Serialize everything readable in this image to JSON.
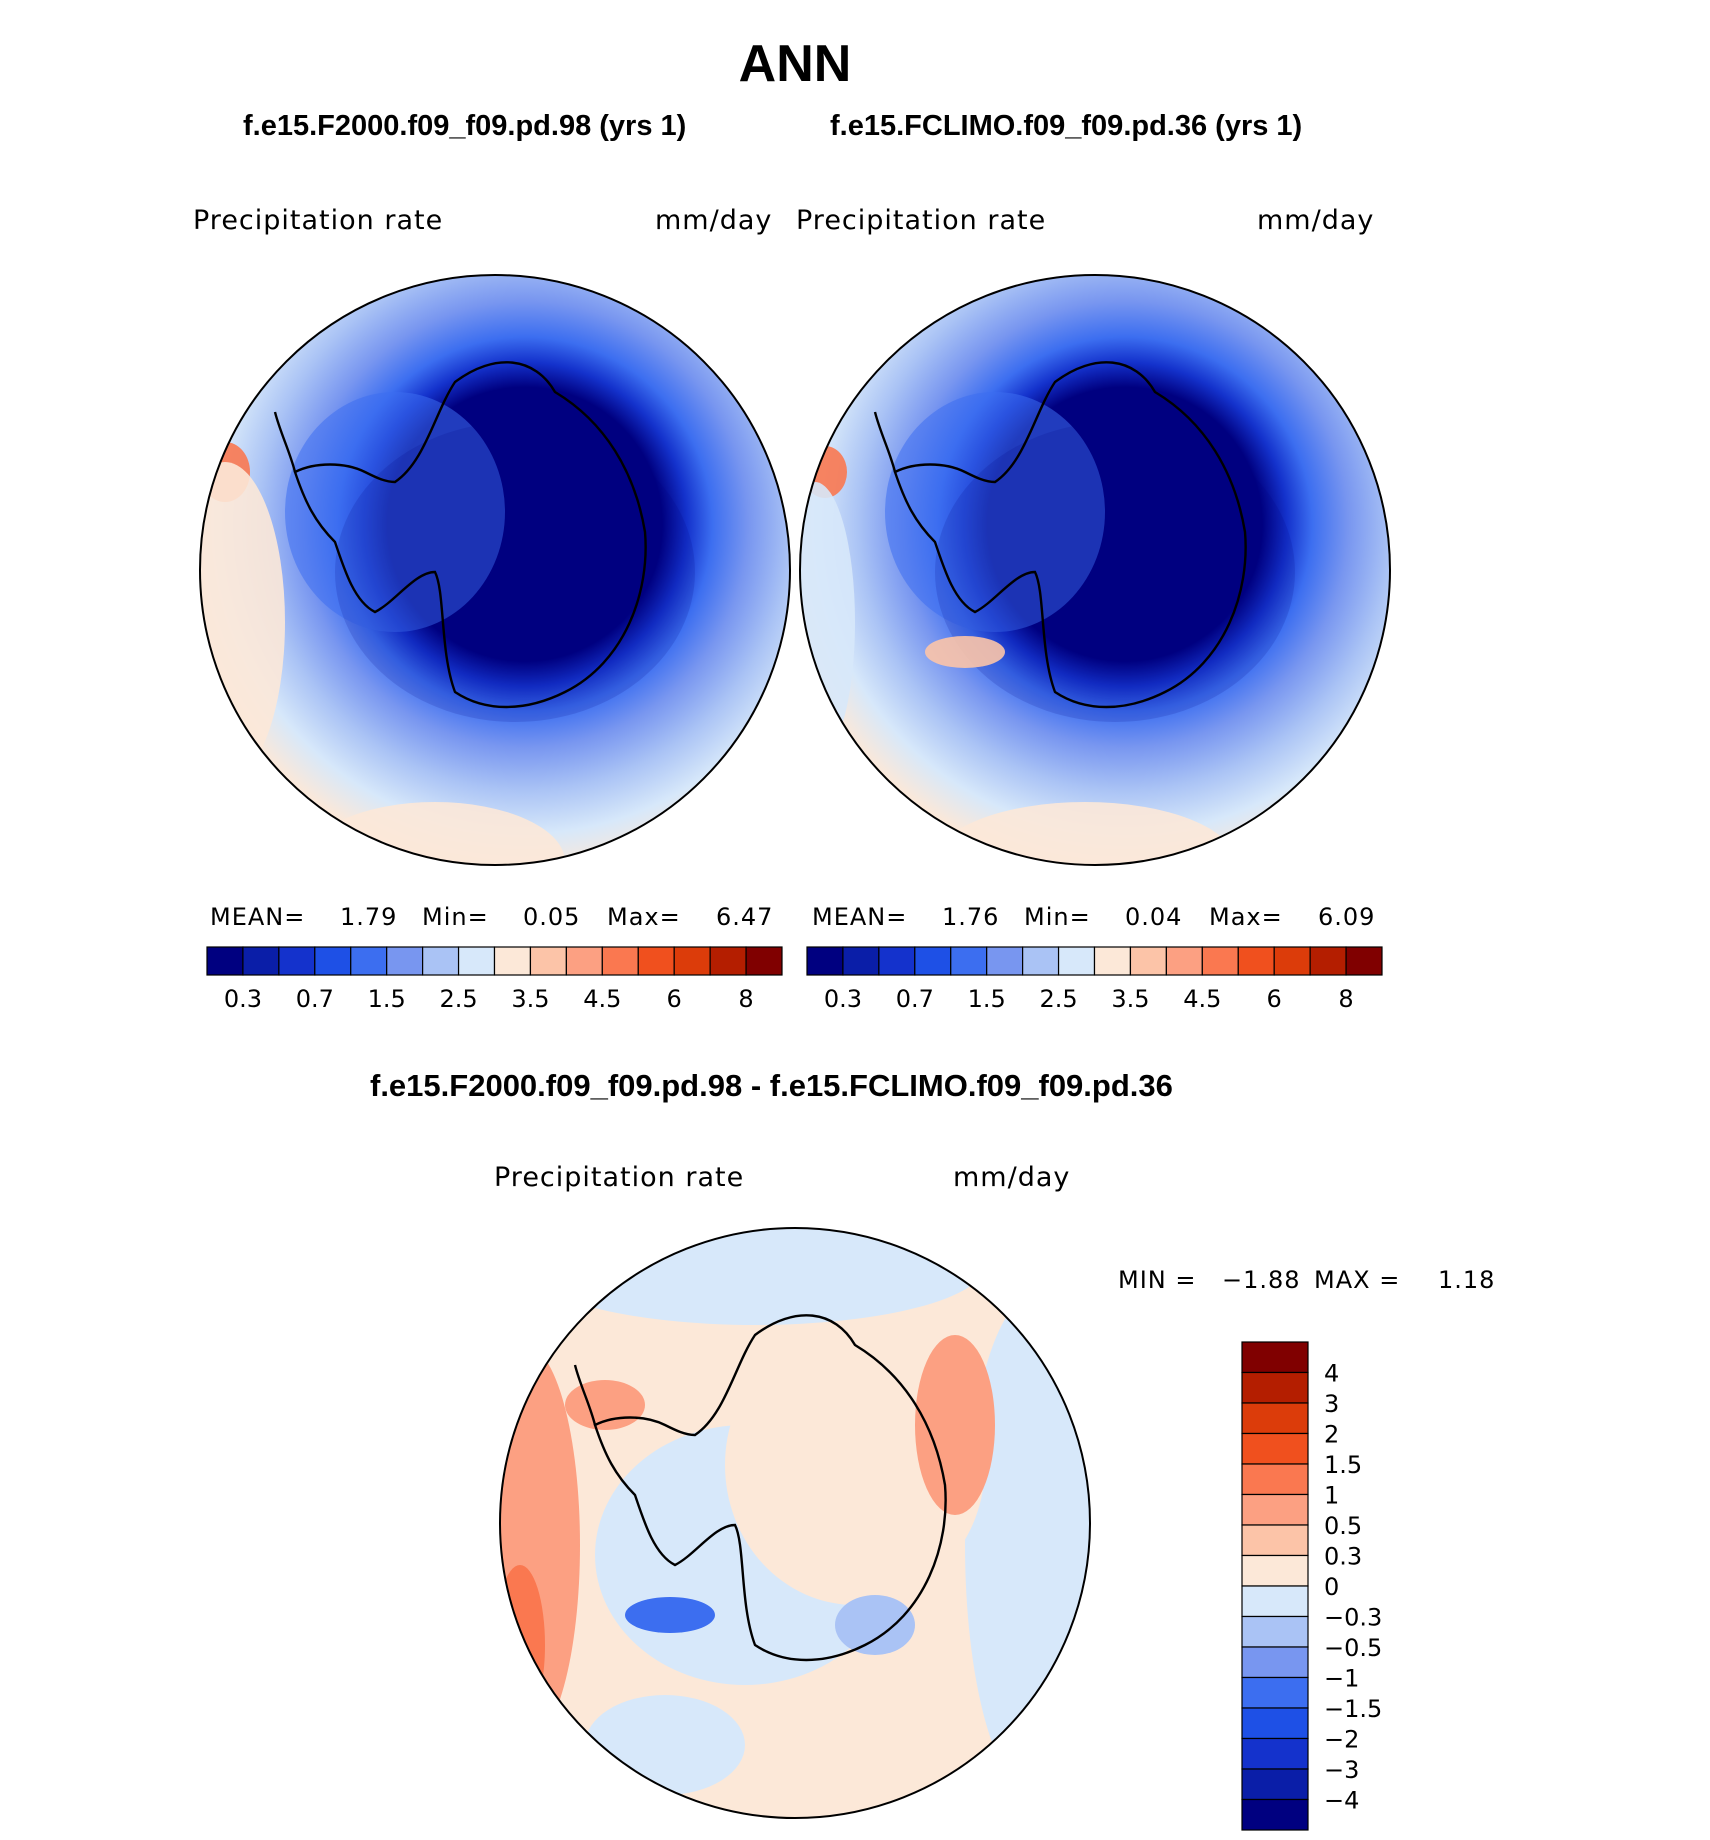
{
  "title": "ANN",
  "panels": [
    {
      "case": "f.e15.F2000.f09_f09.pd.98 (yrs 1)",
      "variable": "Precipitation  rate",
      "units": "mm/day",
      "stats": {
        "mean_label": "MEAN=",
        "mean": "1.79",
        "min_label": "Min=",
        "min": "0.05",
        "max_label": "Max=",
        "max": "6.47"
      }
    },
    {
      "case": "f.e15.FCLIMO.f09_f09.pd.36 (yrs 1)",
      "variable": "Precipitation  rate",
      "units": "mm/day",
      "stats": {
        "mean_label": "MEAN=",
        "mean": "1.76",
        "min_label": "Min=",
        "min": "0.04",
        "max_label": "Max=",
        "max": "6.09"
      }
    }
  ],
  "diff": {
    "title": "f.e15.F2000.f09_f09.pd.98 - f.e15.FCLIMO.f09_f09.pd.36",
    "variable": "Precipitation  rate",
    "units": "mm/day",
    "min_label": "MIN =",
    "min": "−1.88",
    "max_label": "MAX =",
    "max": "1.18"
  },
  "abs_colorbar": {
    "colors": [
      "#000080",
      "#0a1ea8",
      "#1432cc",
      "#1e50e6",
      "#3c6ef0",
      "#7896f0",
      "#aac3f5",
      "#d7e8fa",
      "#fce8d8",
      "#fcc4a8",
      "#fca082",
      "#fa7850",
      "#f0501e",
      "#dc3c0a",
      "#b41e00",
      "#800000"
    ],
    "tick_labels": [
      "0.3",
      "0.7",
      "1.5",
      "2.5",
      "3.5",
      "4.5",
      "6",
      "8"
    ]
  },
  "diff_colorbar": {
    "colors": [
      "#000080",
      "#0a1ea8",
      "#1432cc",
      "#1e50e6",
      "#3c6ef0",
      "#7896f0",
      "#aac3f5",
      "#d7e8fa",
      "#fce8d8",
      "#fcc4a8",
      "#fca082",
      "#fa7850",
      "#f0501e",
      "#dc3c0a",
      "#b41e00",
      "#800000"
    ],
    "labels": [
      "4",
      "3",
      "2",
      "1.5",
      "1",
      "0.5",
      "0.3",
      "0",
      "−0.3",
      "−0.5",
      "−1",
      "−1.5",
      "−2",
      "−3",
      "−4"
    ]
  }
}
